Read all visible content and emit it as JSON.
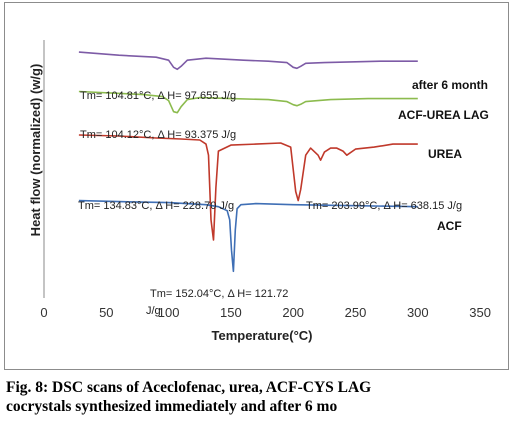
{
  "chart_data": {
    "type": "line",
    "title": "",
    "xlabel": "Temperature(°C)",
    "ylabel": "Heat flow (normalized) (w/g)",
    "xlim": [
      0,
      350
    ],
    "xticks": [
      0,
      50,
      100,
      150,
      200,
      250,
      300,
      350
    ],
    "grid": false,
    "legend": "none",
    "series": [
      {
        "name": "after 6 month",
        "color": "#7d5ba6",
        "x": [
          28,
          60,
          90,
          100,
          104,
          107,
          110,
          115,
          130,
          160,
          180,
          195,
          200,
          203,
          206,
          210,
          225,
          250,
          270,
          285,
          300
        ],
        "y": [
          9.3,
          9.15,
          9.05,
          8.9,
          8.55,
          8.45,
          8.6,
          8.9,
          9.0,
          8.9,
          8.85,
          8.78,
          8.55,
          8.5,
          8.6,
          8.75,
          8.78,
          8.82,
          8.85,
          8.85,
          8.85
        ]
      },
      {
        "name": "ACF-UREA LAG",
        "color": "#8cbb4e",
        "x": [
          28,
          80,
          95,
          100,
          104,
          107,
          110,
          115,
          125,
          150,
          180,
          195,
          200,
          203,
          206,
          210,
          230,
          260,
          300
        ],
        "y": [
          7.35,
          7.2,
          7.1,
          6.9,
          6.35,
          6.3,
          6.6,
          6.95,
          7.05,
          7.0,
          6.95,
          6.85,
          6.7,
          6.65,
          6.72,
          6.85,
          6.95,
          7.0,
          7.0
        ]
      },
      {
        "name": "UREA",
        "color": "#c0392b",
        "x": [
          28,
          60,
          90,
          110,
          125,
          130,
          132,
          134,
          136,
          138,
          140,
          150,
          170,
          190,
          198,
          200,
          202,
          203.99,
          206,
          210,
          214,
          220,
          222,
          225,
          230,
          235,
          240,
          243,
          250,
          265,
          280,
          300
        ],
        "y": [
          5.2,
          5.15,
          5.05,
          5.0,
          4.95,
          4.75,
          4.2,
          1.0,
          0.0,
          2.6,
          4.4,
          4.7,
          4.75,
          4.8,
          4.6,
          3.5,
          2.4,
          1.95,
          2.5,
          4.2,
          4.55,
          4.2,
          3.95,
          4.35,
          4.55,
          4.55,
          4.4,
          4.2,
          4.5,
          4.6,
          4.75,
          4.75
        ]
      },
      {
        "name": "ACF",
        "color": "#3f6fb5",
        "x": [
          28,
          60,
          100,
          130,
          140,
          147,
          149,
          150.5,
          152.04,
          153.5,
          155,
          158,
          170,
          200,
          250,
          300
        ],
        "y": [
          1.95,
          1.9,
          1.85,
          1.75,
          1.65,
          1.45,
          1.0,
          -0.5,
          -1.55,
          0.5,
          1.55,
          1.75,
          1.8,
          1.75,
          1.7,
          1.65
        ]
      }
    ],
    "annotations": [
      "Tm= 104.81°C, Δ H= 97.655 J/g",
      "Tm= 104.12°C, Δ H= 93.375 J/g",
      "Tm= 134.83°C, Δ H= 228.70 J/g",
      "Tm= 203.99°C, Δ H= 638.15 J/g",
      "Tm= 152.04°C, Δ H= 121.72",
      "J/g"
    ]
  },
  "caption": {
    "line1": "Fig. 8: DSC scans of Aceclofenac, urea, ACF-CYS LAG",
    "line2": "cocrystals synthesized immediately and after 6 mo"
  }
}
